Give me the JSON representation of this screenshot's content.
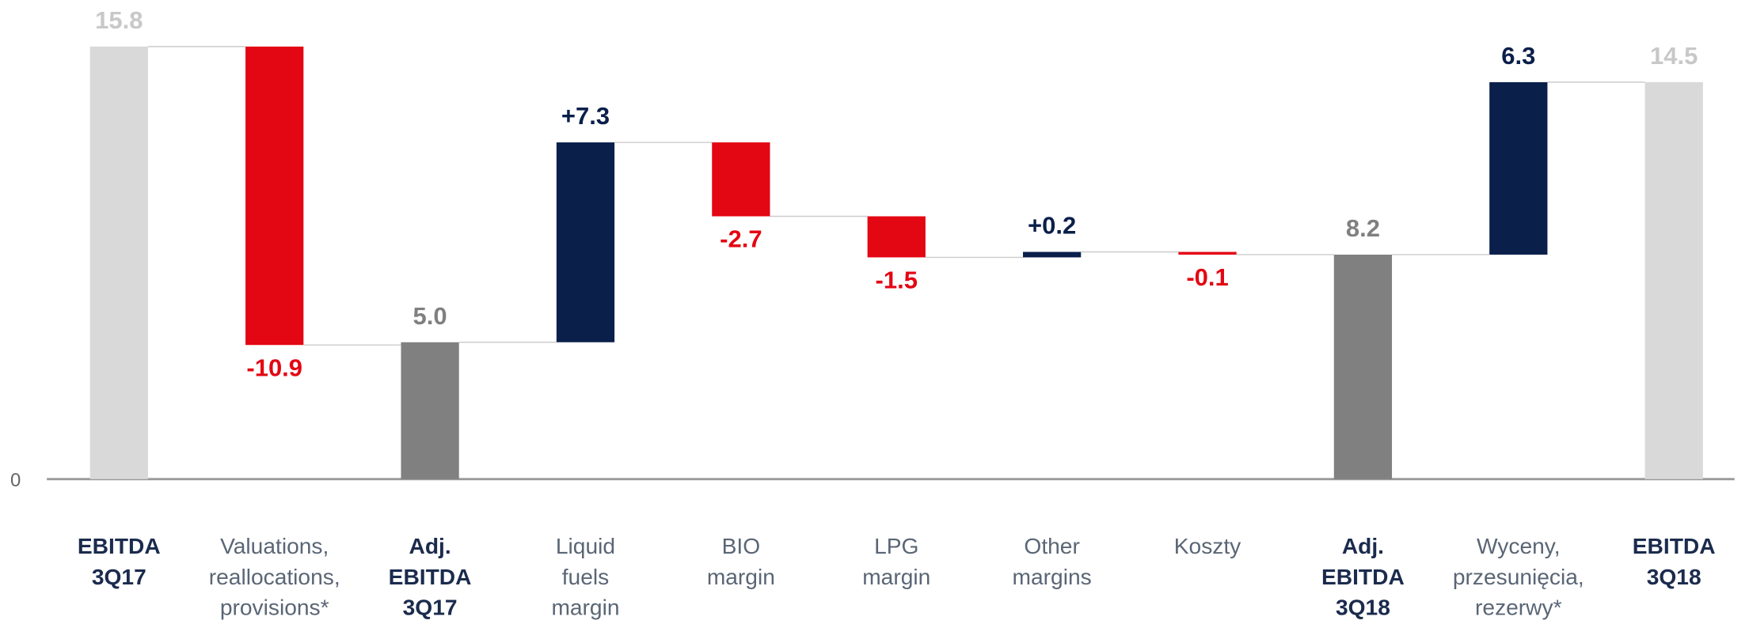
{
  "chart_data": {
    "type": "waterfall",
    "categories": [
      [
        "EBITDA",
        "3Q17"
      ],
      [
        "Valuations,",
        "reallocations,",
        "provisions*"
      ],
      [
        "Adj.",
        "EBITDA",
        "3Q17"
      ],
      [
        "Liquid",
        "fuels",
        "margin"
      ],
      [
        "BIO",
        "margin"
      ],
      [
        "LPG",
        "margin"
      ],
      [
        "Other",
        "margins"
      ],
      [
        "Koszty"
      ],
      [
        "Adj.",
        "EBITDA",
        "3Q18"
      ],
      [
        "Wyceny,",
        "przesunięcia,",
        "rezerwy*"
      ],
      [
        "EBITDA",
        "3Q18"
      ]
    ],
    "values": [
      15.8,
      -10.9,
      5.0,
      7.3,
      -2.7,
      -1.5,
      0.2,
      -0.1,
      8.2,
      6.3,
      14.5
    ],
    "value_labels": [
      "15.8",
      "-10.9",
      "5.0",
      "+7.3",
      "-2.7",
      "-1.5",
      "+0.2",
      "-0.1",
      "8.2",
      "6.3",
      "14.5"
    ],
    "kinds": [
      "total",
      "delta",
      "total",
      "delta",
      "delta",
      "delta",
      "delta",
      "delta",
      "total",
      "delta",
      "total"
    ],
    "colors": [
      "#d9d9d9",
      "#e30613",
      "#808080",
      "#0a1f4a",
      "#e30613",
      "#e30613",
      "#0a1f4a",
      "#e30613",
      "#808080",
      "#0a1f4a",
      "#d9d9d9"
    ],
    "label_colors": [
      "#c8c8c8",
      "#e30613",
      "#808080",
      "#0a1f4a",
      "#e30613",
      "#e30613",
      "#0a1f4a",
      "#e30613",
      "#808080",
      "#0a1f4a",
      "#c8c8c8"
    ],
    "ylim": [
      0,
      17.5
    ],
    "yticks": [
      0
    ]
  }
}
